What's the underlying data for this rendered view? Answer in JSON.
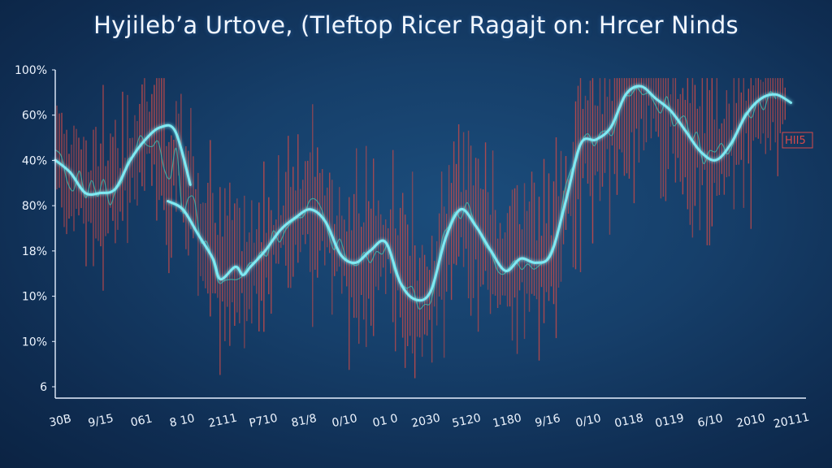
{
  "chart_data": {
    "type": "line",
    "title": "Hyjileb’a Urtove, (Tleftop Ricer Ragajt on: Hrcer Ninds",
    "y_tick_labels": [
      "100%",
      "60%",
      "40%",
      "80%",
      "18%",
      "10%",
      "10%",
      "6"
    ],
    "x_tick_labels": [
      "30B",
      "9/15",
      "061",
      "8 10",
      "2111",
      "P710",
      "81/8",
      "0/10",
      "01 0",
      "2030",
      "5120",
      "1180",
      "9/16",
      "0/10",
      "0118",
      "0119",
      "6/10",
      "2010",
      "20111"
    ],
    "annotation": "HII5",
    "grid": false,
    "colors": {
      "trend_line": "#7fe9f2",
      "price_bars": "#c44a4a",
      "moving_average": "#3fbfb0",
      "axis": "#e6f0ff",
      "annotation": "#d84a4a"
    },
    "series": [
      {
        "x": [
          0,
          0.02,
          0.04,
          0.06,
          0.08,
          0.1,
          0.12,
          0.14,
          0.16,
          0.18
        ],
        "y": [
          5.8,
          5.5,
          5.0,
          5.0,
          5.1,
          5.8,
          6.3,
          6.6,
          6.5,
          5.2
        ]
      },
      {
        "x": [
          0.15,
          0.17,
          0.19,
          0.21,
          0.22,
          0.24,
          0.25,
          0.26,
          0.28,
          0.3,
          0.32,
          0.34,
          0.36,
          0.38,
          0.4,
          0.42,
          0.44,
          0.46,
          0.48,
          0.5,
          0.52,
          0.54,
          0.56,
          0.58,
          0.6,
          0.62,
          0.64,
          0.66,
          0.68,
          0.7,
          0.72,
          0.74,
          0.76,
          0.78,
          0.8,
          0.82,
          0.84,
          0.86,
          0.88,
          0.9,
          0.92,
          0.94,
          0.96,
          0.98
        ],
        "y": [
          4.8,
          4.6,
          4.0,
          3.4,
          2.9,
          3.2,
          3.0,
          3.2,
          3.6,
          4.1,
          4.4,
          4.6,
          4.3,
          3.5,
          3.3,
          3.6,
          3.8,
          2.8,
          2.4,
          2.6,
          3.9,
          4.6,
          4.2,
          3.6,
          3.1,
          3.4,
          3.3,
          3.5,
          4.8,
          6.2,
          6.3,
          6.6,
          7.4,
          7.6,
          7.3,
          7.0,
          6.5,
          6.0,
          5.8,
          6.2,
          6.9,
          7.3,
          7.4,
          7.2
        ]
      }
    ]
  }
}
